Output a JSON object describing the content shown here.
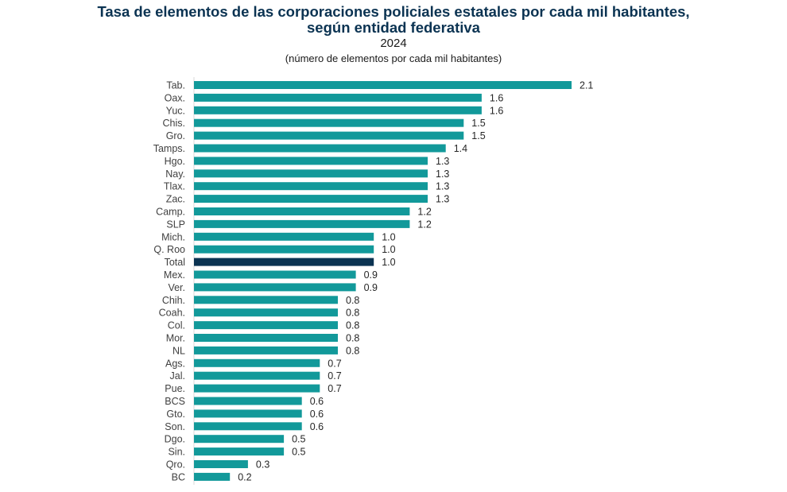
{
  "chart_data": {
    "type": "bar",
    "orientation": "horizontal",
    "title": "Tasa de elementos de las corporaciones policiales estatales por cada mil habitantes,",
    "title_line2": "según entidad federativa",
    "subtitle": "2024",
    "unit_note": "(número de elementos por cada mil habitantes)",
    "categories": [
      "Tab.",
      "Oax.",
      "Yuc.",
      "Chis.",
      "Gro.",
      "Tamps.",
      "Hgo.",
      "Nay.",
      "Tlax.",
      "Zac.",
      "Camp.",
      "SLP",
      "Mich.",
      "Q. Roo",
      "Total",
      "Mex.",
      "Ver.",
      "Chih.",
      "Coah.",
      "Col.",
      "Mor.",
      "NL",
      "Ags.",
      "Jal.",
      "Pue.",
      "BCS",
      "Gto.",
      "Son.",
      "Dgo.",
      "Sin.",
      "Qro.",
      "BC"
    ],
    "values": [
      2.1,
      1.6,
      1.6,
      1.5,
      1.5,
      1.4,
      1.3,
      1.3,
      1.3,
      1.3,
      1.2,
      1.2,
      1.0,
      1.0,
      1.0,
      0.9,
      0.9,
      0.8,
      0.8,
      0.8,
      0.8,
      0.8,
      0.7,
      0.7,
      0.7,
      0.6,
      0.6,
      0.6,
      0.5,
      0.5,
      0.3,
      0.2
    ],
    "value_labels": [
      "2.1",
      "1.6",
      "1.6",
      "1.5",
      "1.5",
      "1.4",
      "1.3",
      "1.3",
      "1.3",
      "1.3",
      "1.2",
      "1.2",
      "1.0",
      "1.0",
      "1.0",
      "0.9",
      "0.9",
      "0.8",
      "0.8",
      "0.8",
      "0.8",
      "0.8",
      "0.7",
      "0.7",
      "0.7",
      "0.6",
      "0.6",
      "0.6",
      "0.5",
      "0.5",
      "0.3",
      "0.2"
    ],
    "highlight_category": "Total",
    "colors": {
      "bar": "#12999a",
      "highlight": "#0b3352",
      "title": "#0b3352"
    },
    "xlim": [
      0,
      2.1
    ],
    "grid": false,
    "legend": "none"
  }
}
